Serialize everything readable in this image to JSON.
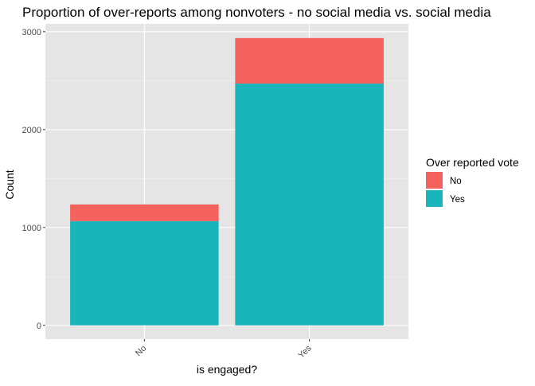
{
  "chart_data": {
    "type": "bar",
    "stacked": true,
    "title": "Proportion of over-reports among nonvoters - no social media vs. social media",
    "xlabel": "is engaged?",
    "ylabel": "Count",
    "categories": [
      "No",
      "Yes"
    ],
    "series": [
      {
        "name": "Yes",
        "values": [
          1065,
          2470
        ],
        "color": "#1ab5ba"
      },
      {
        "name": "No",
        "values": [
          170,
          465
        ],
        "color": "#f5625e"
      }
    ],
    "ylim": [
      -140,
      3080
    ],
    "yticks": [
      0,
      1000,
      2000,
      3000
    ],
    "grid": true,
    "panel_background": "#e5e5e5",
    "legend": {
      "title": "Over reported vote",
      "position": "right",
      "entries": [
        {
          "label": "No",
          "color": "#f5625e"
        },
        {
          "label": "Yes",
          "color": "#1ab5ba"
        }
      ]
    }
  }
}
